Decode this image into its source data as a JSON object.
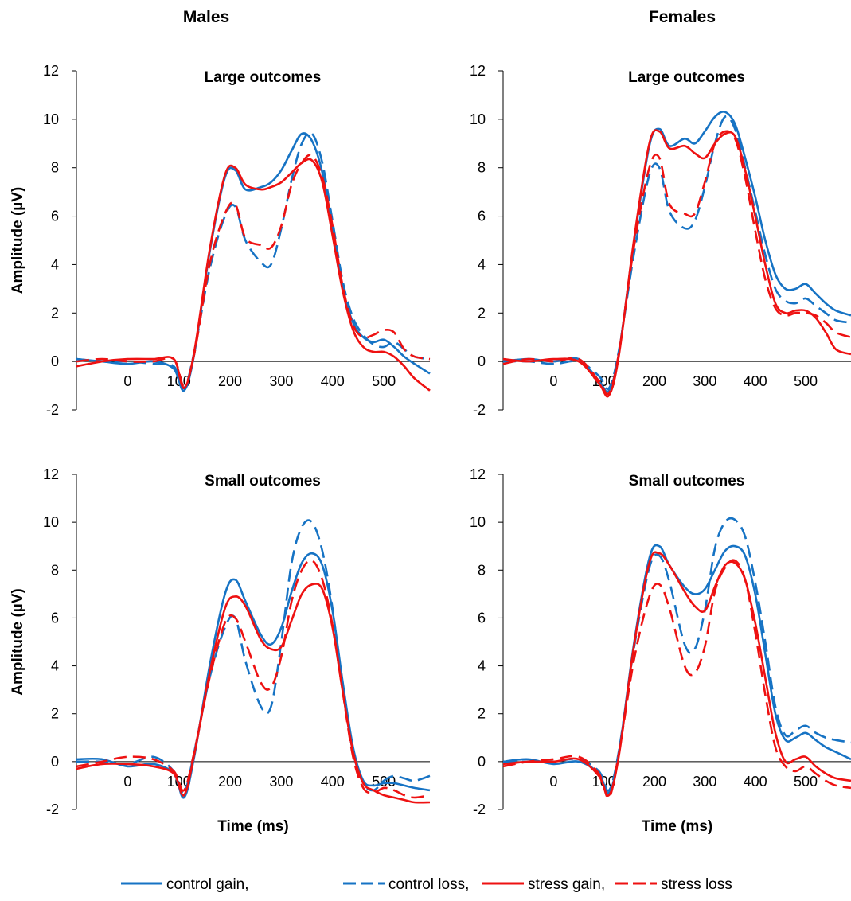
{
  "headers": {
    "left": "Males",
    "right": "Females"
  },
  "legend": [
    {
      "label": "control gain,",
      "color": "#1673c4",
      "dash": "solid"
    },
    {
      "label": "control loss,",
      "color": "#1673c4",
      "dash": "dashed"
    },
    {
      "label": "stress gain,",
      "color": "#ee1111",
      "dash": "solid"
    },
    {
      "label": "stress loss",
      "color": "#ee1111",
      "dash": "dashed"
    }
  ],
  "chart_data": [
    {
      "type": "line",
      "title": "Large outcomes",
      "group": "Males",
      "xlabel": "",
      "ylabel": "Amplitude (µV)",
      "xlim": [
        -100,
        590
      ],
      "ylim": [
        -2,
        12
      ],
      "xticks": [
        0,
        100,
        200,
        300,
        400,
        500
      ],
      "yticks": [
        -2,
        0,
        2,
        4,
        6,
        8,
        10,
        12
      ],
      "x": [
        -100,
        -50,
        0,
        50,
        90,
        110,
        130,
        160,
        190,
        210,
        230,
        260,
        280,
        300,
        320,
        340,
        360,
        380,
        400,
        420,
        440,
        460,
        480,
        500,
        520,
        540,
        560,
        590
      ],
      "series": [
        {
          "name": "control gain",
          "color": "#1673c4",
          "dash": "solid",
          "values": [
            0.1,
            0.0,
            -0.1,
            0.0,
            -0.3,
            -1.2,
            0.3,
            4.5,
            7.6,
            7.9,
            7.1,
            7.2,
            7.4,
            7.9,
            8.7,
            9.4,
            9.1,
            7.8,
            5.5,
            3.0,
            1.6,
            1.0,
            0.8,
            0.9,
            0.6,
            0.2,
            -0.1,
            -0.5
          ]
        },
        {
          "name": "control loss",
          "color": "#1673c4",
          "dash": "dashed",
          "values": [
            0.1,
            0.0,
            0.0,
            -0.1,
            -0.2,
            -1.1,
            0.4,
            3.8,
            6.0,
            6.4,
            5.0,
            4.1,
            4.0,
            5.5,
            7.5,
            9.0,
            9.4,
            8.2,
            5.8,
            3.3,
            1.8,
            1.1,
            0.7,
            0.6,
            0.8,
            0.5,
            0.2,
            0.1
          ]
        },
        {
          "name": "stress gain",
          "color": "#ee1111",
          "dash": "solid",
          "values": [
            -0.2,
            0.0,
            0.1,
            0.1,
            0.1,
            -1.1,
            0.4,
            4.6,
            7.7,
            8.0,
            7.3,
            7.1,
            7.2,
            7.4,
            7.8,
            8.2,
            8.3,
            7.4,
            5.2,
            2.9,
            1.3,
            0.6,
            0.4,
            0.4,
            0.2,
            -0.2,
            -0.7,
            -1.2
          ]
        },
        {
          "name": "stress loss",
          "color": "#ee1111",
          "dash": "dashed",
          "values": [
            0.0,
            0.1,
            0.0,
            0.0,
            0.1,
            -1.0,
            0.3,
            4.0,
            6.1,
            6.5,
            5.1,
            4.8,
            4.7,
            5.6,
            7.3,
            8.2,
            8.5,
            7.6,
            5.6,
            3.1,
            1.5,
            1.0,
            1.1,
            1.3,
            1.2,
            0.5,
            0.2,
            0.1
          ]
        }
      ]
    },
    {
      "type": "line",
      "title": "Large outcomes",
      "group": "Females",
      "xlabel": "",
      "ylabel": "",
      "xlim": [
        -100,
        590
      ],
      "ylim": [
        -2,
        12
      ],
      "xticks": [
        0,
        100,
        200,
        300,
        400,
        500
      ],
      "yticks": [
        -2,
        0,
        2,
        4,
        6,
        8,
        10,
        12
      ],
      "x": [
        -100,
        -50,
        0,
        50,
        90,
        110,
        130,
        160,
        190,
        210,
        230,
        260,
        280,
        300,
        320,
        340,
        360,
        380,
        400,
        420,
        440,
        460,
        480,
        500,
        520,
        540,
        560,
        590
      ],
      "series": [
        {
          "name": "control gain",
          "color": "#1673c4",
          "dash": "solid",
          "values": [
            0.0,
            0.1,
            0.0,
            0.1,
            -0.8,
            -1.2,
            0.4,
            5.0,
            8.9,
            9.6,
            8.9,
            9.2,
            9.0,
            9.5,
            10.1,
            10.3,
            9.8,
            8.4,
            6.8,
            5.0,
            3.6,
            3.0,
            3.0,
            3.2,
            2.8,
            2.4,
            2.1,
            1.9
          ]
        },
        {
          "name": "control loss",
          "color": "#1673c4",
          "dash": "dashed",
          "values": [
            0.0,
            0.0,
            -0.1,
            0.0,
            -0.6,
            -1.1,
            0.5,
            4.5,
            7.7,
            8.0,
            6.2,
            5.5,
            5.8,
            7.2,
            9.0,
            10.1,
            9.6,
            8.0,
            6.2,
            4.4,
            3.0,
            2.5,
            2.4,
            2.6,
            2.3,
            2.0,
            1.7,
            1.6
          ]
        },
        {
          "name": "stress gain",
          "color": "#ee1111",
          "dash": "solid",
          "values": [
            0.1,
            0.0,
            0.1,
            0.0,
            -0.9,
            -1.4,
            0.3,
            5.1,
            9.0,
            9.5,
            8.8,
            8.9,
            8.6,
            8.4,
            9.0,
            9.4,
            9.3,
            7.9,
            6.0,
            4.0,
            2.4,
            2.0,
            2.1,
            2.1,
            1.8,
            1.2,
            0.5,
            0.3
          ]
        },
        {
          "name": "stress loss",
          "color": "#ee1111",
          "dash": "dashed",
          "values": [
            -0.1,
            0.1,
            0.0,
            0.1,
            -0.8,
            -1.3,
            0.4,
            4.8,
            8.0,
            8.4,
            6.5,
            6.1,
            6.1,
            7.4,
            9.0,
            9.5,
            9.2,
            7.6,
            5.4,
            3.4,
            2.2,
            1.9,
            2.0,
            2.0,
            1.9,
            1.6,
            1.2,
            1.0
          ]
        }
      ]
    },
    {
      "type": "line",
      "title": "Small outcomes",
      "group": "Males",
      "xlabel": "Time (ms)",
      "ylabel": "Amplitude (µV)",
      "xlim": [
        -100,
        590
      ],
      "ylim": [
        -2,
        12
      ],
      "xticks": [
        0,
        100,
        200,
        300,
        400,
        500
      ],
      "yticks": [
        -2,
        0,
        2,
        4,
        6,
        8,
        10,
        12
      ],
      "x": [
        -100,
        -50,
        0,
        50,
        90,
        110,
        130,
        160,
        190,
        210,
        230,
        260,
        280,
        300,
        320,
        340,
        360,
        380,
        400,
        420,
        440,
        460,
        480,
        500,
        520,
        540,
        560,
        590
      ],
      "series": [
        {
          "name": "control gain",
          "color": "#1673c4",
          "dash": "solid",
          "values": [
            0.1,
            0.1,
            -0.2,
            -0.1,
            -0.5,
            -1.5,
            0.2,
            4.0,
            7.0,
            7.6,
            6.7,
            5.3,
            4.9,
            5.6,
            7.1,
            8.3,
            8.7,
            8.2,
            6.3,
            3.3,
            0.6,
            -0.8,
            -1.0,
            -0.9,
            -0.9,
            -1.0,
            -1.1,
            -1.2
          ]
        },
        {
          "name": "control loss",
          "color": "#1673c4",
          "dash": "dashed",
          "values": [
            0.0,
            0.0,
            -0.1,
            0.2,
            -0.4,
            -1.3,
            0.4,
            3.5,
            5.6,
            6.0,
            4.2,
            2.3,
            2.3,
            5.0,
            8.3,
            9.8,
            10.0,
            8.8,
            6.4,
            3.0,
            0.4,
            -0.9,
            -1.2,
            -0.8,
            -0.6,
            -0.7,
            -0.8,
            -0.6
          ]
        },
        {
          "name": "stress gain",
          "color": "#ee1111",
          "dash": "solid",
          "values": [
            -0.3,
            -0.1,
            -0.1,
            -0.2,
            -0.5,
            -1.4,
            0.3,
            3.7,
            6.4,
            6.9,
            6.5,
            5.1,
            4.7,
            4.8,
            5.9,
            7.0,
            7.4,
            7.2,
            5.6,
            2.9,
            0.4,
            -0.9,
            -1.2,
            -1.4,
            -1.5,
            -1.6,
            -1.7,
            -1.7
          ]
        },
        {
          "name": "stress loss",
          "color": "#ee1111",
          "dash": "dashed",
          "values": [
            -0.2,
            0.0,
            0.2,
            0.1,
            -0.4,
            -1.2,
            0.4,
            3.5,
            5.8,
            6.0,
            5.0,
            3.3,
            3.1,
            4.4,
            6.7,
            8.0,
            8.4,
            7.6,
            5.7,
            2.9,
            0.2,
            -1.1,
            -1.3,
            -1.1,
            -1.2,
            -1.4,
            -1.5,
            -1.4
          ]
        }
      ]
    },
    {
      "type": "line",
      "title": "Small outcomes",
      "group": "Females",
      "xlabel": "Time (ms)",
      "ylabel": "",
      "xlim": [
        -100,
        590
      ],
      "ylim": [
        -2,
        12
      ],
      "xticks": [
        0,
        100,
        200,
        300,
        400,
        500
      ],
      "yticks": [
        -2,
        0,
        2,
        4,
        6,
        8,
        10,
        12
      ],
      "x": [
        -100,
        -50,
        0,
        50,
        90,
        110,
        130,
        160,
        190,
        210,
        230,
        260,
        280,
        300,
        320,
        340,
        360,
        380,
        400,
        420,
        440,
        460,
        480,
        500,
        520,
        540,
        560,
        590
      ],
      "series": [
        {
          "name": "control gain",
          "color": "#1673c4",
          "dash": "solid",
          "values": [
            0.0,
            0.1,
            -0.1,
            0.0,
            -0.5,
            -1.3,
            0.4,
            5.0,
            8.5,
            9.0,
            8.2,
            7.3,
            7.0,
            7.2,
            8.0,
            8.8,
            9.0,
            8.6,
            7.0,
            4.5,
            2.0,
            0.9,
            1.0,
            1.2,
            0.9,
            0.6,
            0.4,
            0.1
          ]
        },
        {
          "name": "control loss",
          "color": "#1673c4",
          "dash": "dashed",
          "values": [
            0.0,
            0.0,
            0.0,
            0.1,
            -0.4,
            -1.2,
            0.5,
            4.8,
            8.1,
            8.6,
            7.5,
            4.9,
            4.7,
            6.3,
            8.9,
            10.0,
            10.1,
            9.4,
            7.5,
            5.0,
            2.3,
            1.1,
            1.3,
            1.5,
            1.2,
            1.0,
            0.9,
            0.8
          ]
        },
        {
          "name": "stress gain",
          "color": "#ee1111",
          "dash": "solid",
          "values": [
            -0.1,
            0.0,
            0.0,
            0.1,
            -0.6,
            -1.4,
            0.3,
            4.9,
            8.3,
            8.7,
            8.2,
            7.1,
            6.5,
            6.3,
            7.3,
            8.2,
            8.3,
            7.6,
            5.8,
            3.5,
            1.2,
            0.0,
            0.1,
            0.2,
            -0.2,
            -0.5,
            -0.7,
            -0.8
          ]
        },
        {
          "name": "stress loss",
          "color": "#ee1111",
          "dash": "dashed",
          "values": [
            -0.2,
            0.0,
            0.1,
            0.2,
            -0.5,
            -1.5,
            0.4,
            4.3,
            6.9,
            7.4,
            6.4,
            4.0,
            3.7,
            4.8,
            7.1,
            8.1,
            8.4,
            7.6,
            5.4,
            2.8,
            0.6,
            -0.2,
            -0.4,
            -0.2,
            -0.5,
            -0.8,
            -1.0,
            -1.1
          ]
        }
      ]
    }
  ]
}
